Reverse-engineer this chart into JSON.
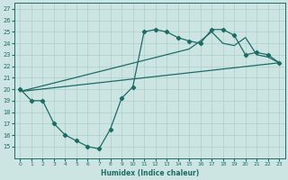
{
  "xlabel": "Humidex (Indice chaleur)",
  "xlim": [
    -0.5,
    23.5
  ],
  "ylim": [
    14.0,
    27.5
  ],
  "yticks": [
    15,
    16,
    17,
    18,
    19,
    20,
    21,
    22,
    23,
    24,
    25,
    26,
    27
  ],
  "xticks": [
    0,
    1,
    2,
    3,
    4,
    5,
    6,
    7,
    8,
    9,
    10,
    11,
    12,
    13,
    14,
    15,
    16,
    17,
    18,
    19,
    20,
    21,
    22,
    23
  ],
  "bg_color": "#cce5e3",
  "grid_color": "#aacfcc",
  "line_color": "#1e6b65",
  "jagged": {
    "x": [
      0,
      1,
      2,
      3,
      4,
      5,
      6,
      7,
      8,
      9,
      10,
      11,
      12,
      13,
      14,
      15,
      16,
      17,
      18,
      19,
      20,
      21,
      22,
      23
    ],
    "y": [
      20.0,
      19.0,
      19.0,
      17.0,
      16.0,
      15.5,
      15.0,
      14.8,
      16.5,
      19.2,
      20.2,
      25.0,
      25.2,
      25.0,
      24.5,
      24.2,
      24.0,
      25.2,
      25.2,
      24.7,
      23.0,
      23.2,
      23.0,
      22.3
    ]
  },
  "diag_lower": {
    "x": [
      0,
      23
    ],
    "y": [
      19.8,
      22.3
    ]
  },
  "diag_upper": {
    "x": [
      0,
      15,
      16,
      17,
      18,
      19,
      20,
      21,
      22,
      23
    ],
    "y": [
      19.8,
      23.5,
      24.2,
      25.0,
      24.0,
      23.8,
      24.5,
      23.0,
      22.8,
      22.3
    ]
  }
}
